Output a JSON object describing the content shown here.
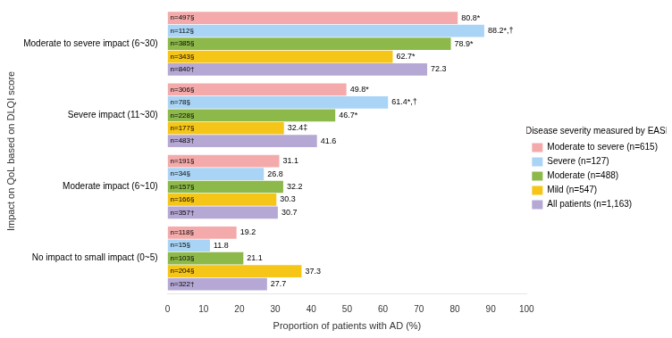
{
  "chart_data": {
    "type": "bar",
    "orientation": "horizontal",
    "categories": [
      "Moderate to severe impact (6~30)",
      "Severe impact (11~30)",
      "Moderate impact (6~10)",
      "No impact to small impact (0~5)"
    ],
    "series": [
      {
        "name": "Moderate to severe (n=615)",
        "color": "#f4aaaa",
        "values": [
          80.8,
          49.8,
          31.1,
          19.2
        ],
        "value_labels": [
          "80.8*",
          "49.8*",
          "31.1",
          "19.2"
        ],
        "n_labels": [
          "n=497§",
          "n=306§",
          "n=191§",
          "n=118§"
        ]
      },
      {
        "name": "Severe (n=127)",
        "color": "#aad4f5",
        "values": [
          88.2,
          61.4,
          26.8,
          11.8
        ],
        "value_labels": [
          "88.2*,†",
          "61.4*,†",
          "26.8",
          "11.8"
        ],
        "n_labels": [
          "n=112§",
          "n=78§",
          "n=34§",
          "n=15§"
        ]
      },
      {
        "name": "Moderate (n=488)",
        "color": "#8db84a",
        "values": [
          78.9,
          46.7,
          32.2,
          21.1
        ],
        "value_labels": [
          "78.9*",
          "46.7*",
          "32.2",
          "21.1"
        ],
        "n_labels": [
          "n=385§",
          "n=228§",
          "n=157§",
          "n=103§"
        ]
      },
      {
        "name": "Mild (n=547)",
        "color": "#f5c518",
        "values": [
          62.7,
          32.4,
          30.3,
          37.3
        ],
        "value_labels": [
          "62.7*",
          "32.4‡",
          "30.3",
          "37.3"
        ],
        "n_labels": [
          "n=343§",
          "n=177§",
          "n=166§",
          "n=204§"
        ]
      },
      {
        "name": "All patients (n=1,163)",
        "color": "#b5a8d4",
        "values": [
          72.3,
          41.6,
          30.7,
          27.7
        ],
        "value_labels": [
          "72.3",
          "41.6",
          "30.7",
          "27.7"
        ],
        "n_labels": [
          "n=840†",
          "n=483†",
          "n=357†",
          "n=322†"
        ]
      }
    ],
    "xlabel": "Proportion of patients with AD (%)",
    "ylabel": "Impact on QoL based on DLQI score",
    "legend_title": "Disease severity measured by EASI",
    "legend": "right",
    "xlim": [
      0,
      100
    ],
    "xticks": [
      0,
      10,
      20,
      30,
      40,
      50,
      60,
      70,
      80,
      90,
      100
    ],
    "grid": false,
    "data_labels": true
  }
}
